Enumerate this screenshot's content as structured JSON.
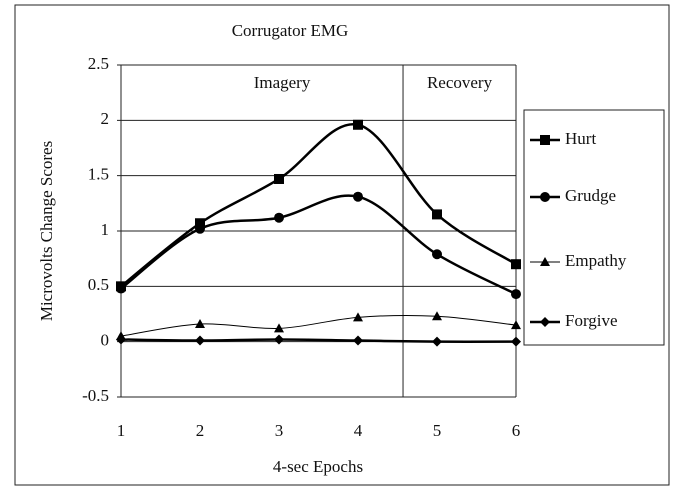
{
  "chart_data": {
    "type": "line",
    "title": "Corrugator EMG",
    "x_label": "4-sec Epochs",
    "y_label": "Microvolts Change Scores",
    "x": [
      1,
      2,
      3,
      4,
      5,
      6
    ],
    "xlim": [
      1,
      6
    ],
    "xticks": [
      1,
      2,
      3,
      4,
      5,
      6
    ],
    "ylim": [
      -0.5,
      2.5
    ],
    "yticks": [
      -0.5,
      0,
      0.5,
      1,
      1.5,
      2,
      2.5
    ],
    "grid": true,
    "phase_boundary": 4.57,
    "annotations": [
      "Imagery",
      "Recovery"
    ],
    "legend": "right",
    "series": [
      {
        "name": "Hurt",
        "color": "#000000",
        "marker": "square",
        "line_width": 2.5,
        "values": [
          0.5,
          1.07,
          1.47,
          1.96,
          1.15,
          0.7
        ]
      },
      {
        "name": "Grudge",
        "color": "#000000",
        "marker": "circle",
        "line_width": 2.5,
        "values": [
          0.48,
          1.02,
          1.12,
          1.31,
          0.79,
          0.43
        ]
      },
      {
        "name": "Empathy",
        "color": "#000000",
        "marker": "triangle",
        "line_width": 1,
        "values": [
          0.05,
          0.16,
          0.12,
          0.22,
          0.23,
          0.15
        ]
      },
      {
        "name": "Forgive",
        "color": "#000000",
        "marker": "diamond",
        "line_width": 2.5,
        "values": [
          0.02,
          0.01,
          0.02,
          0.01,
          0.0,
          0.0
        ]
      }
    ]
  }
}
